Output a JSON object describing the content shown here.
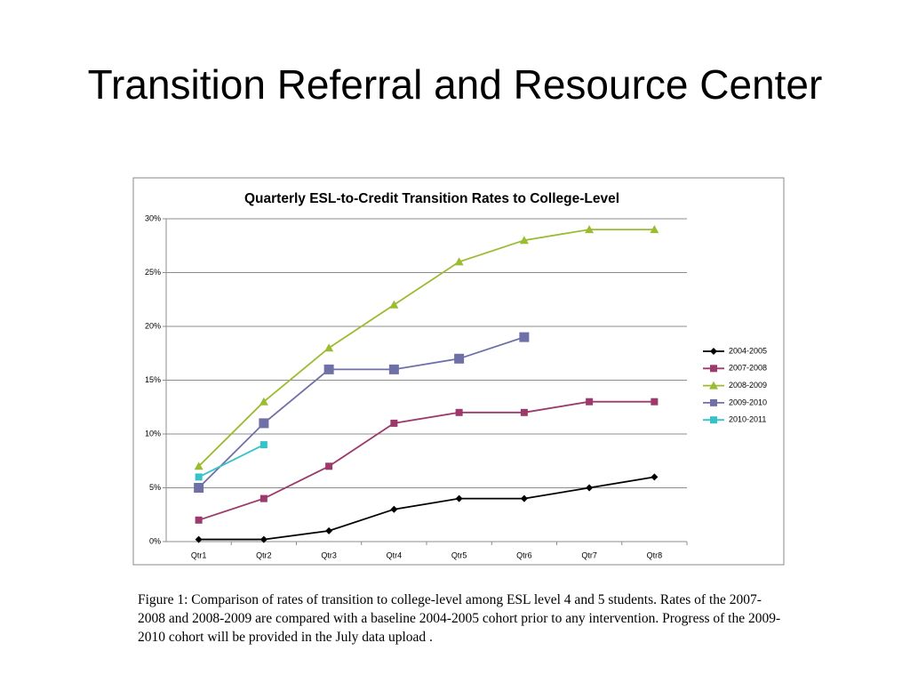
{
  "slide_title": "Transition Referral and Resource Center",
  "caption": "Figure 1: Comparison of rates of transition to college-level among ESL level 4 and 5 students. Rates of the 2007-2008 and 2008-2009 are compared with a baseline 2004-2005 cohort prior to any intervention. Progress of the 2009-2010 cohort will be provided in the July data upload .",
  "chart_data": {
    "type": "line",
    "title": "Quarterly ESL-to-Credit Transition Rates to College-Level",
    "categories": [
      "Qtr1",
      "Qtr2",
      "Qtr3",
      "Qtr4",
      "Qtr5",
      "Qtr6",
      "Qtr7",
      "Qtr8"
    ],
    "series": [
      {
        "name": "2004-2005",
        "color": "#000000",
        "marker": "diamond",
        "values": [
          0.2,
          0.2,
          1,
          3,
          4,
          4,
          5,
          6
        ]
      },
      {
        "name": "2007-2008",
        "color": "#9b3a6b",
        "marker": "square",
        "values": [
          2,
          4,
          7,
          11,
          12,
          12,
          13,
          13
        ]
      },
      {
        "name": "2008-2009",
        "color": "#9bbb30",
        "marker": "triangle",
        "values": [
          7,
          13,
          18,
          22,
          26,
          28,
          29,
          29
        ]
      },
      {
        "name": "2009-2010",
        "color": "#7070a8",
        "marker": "bigsquare",
        "values": [
          5,
          11,
          16,
          16,
          17,
          19,
          null,
          null
        ]
      },
      {
        "name": "2010-2011",
        "color": "#33c3c8",
        "marker": "square",
        "values": [
          6,
          9,
          null,
          null,
          null,
          null,
          null,
          null
        ]
      }
    ],
    "ylim": [
      0,
      30
    ],
    "yticks": [
      {
        "value": 0,
        "label": "0%"
      },
      {
        "value": 5,
        "label": "5%"
      },
      {
        "value": 10,
        "label": "10%"
      },
      {
        "value": 15,
        "label": "15%"
      },
      {
        "value": 20,
        "label": "20%"
      },
      {
        "value": 25,
        "label": "25%"
      },
      {
        "value": 30,
        "label": "30%"
      }
    ],
    "grid": true,
    "legend": "right"
  }
}
